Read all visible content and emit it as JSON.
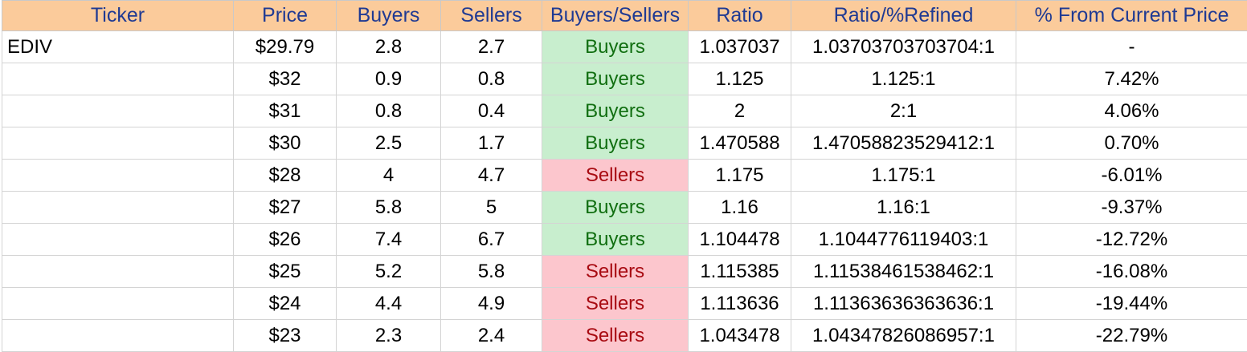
{
  "table": {
    "headers": [
      "Ticker",
      "Price",
      "Buyers",
      "Sellers",
      "Buyers/Sellers",
      "Ratio",
      "Ratio/%Refined",
      "% From Current Price"
    ],
    "rows": [
      {
        "ticker": "EDIV",
        "price": "$29.79",
        "buyers": "2.8",
        "sellers": "2.7",
        "signal": "Buyers",
        "ratio": "1.037037",
        "refined": "1.03703703703704:1",
        "pct": "-"
      },
      {
        "ticker": "",
        "price": "$32",
        "buyers": "0.9",
        "sellers": "0.8",
        "signal": "Buyers",
        "ratio": "1.125",
        "refined": "1.125:1",
        "pct": "7.42%"
      },
      {
        "ticker": "",
        "price": "$31",
        "buyers": "0.8",
        "sellers": "0.4",
        "signal": "Buyers",
        "ratio": "2",
        "refined": "2:1",
        "pct": "4.06%"
      },
      {
        "ticker": "",
        "price": "$30",
        "buyers": "2.5",
        "sellers": "1.7",
        "signal": "Buyers",
        "ratio": "1.470588",
        "refined": "1.47058823529412:1",
        "pct": "0.70%"
      },
      {
        "ticker": "",
        "price": "$28",
        "buyers": "4",
        "sellers": "4.7",
        "signal": "Sellers",
        "ratio": "1.175",
        "refined": "1.175:1",
        "pct": "-6.01%"
      },
      {
        "ticker": "",
        "price": "$27",
        "buyers": "5.8",
        "sellers": "5",
        "signal": "Buyers",
        "ratio": "1.16",
        "refined": "1.16:1",
        "pct": "-9.37%"
      },
      {
        "ticker": "",
        "price": "$26",
        "buyers": "7.4",
        "sellers": "6.7",
        "signal": "Buyers",
        "ratio": "1.104478",
        "refined": "1.1044776119403:1",
        "pct": "-12.72%"
      },
      {
        "ticker": "",
        "price": "$25",
        "buyers": "5.2",
        "sellers": "5.8",
        "signal": "Sellers",
        "ratio": "1.115385",
        "refined": "1.11538461538462:1",
        "pct": "-16.08%"
      },
      {
        "ticker": "",
        "price": "$24",
        "buyers": "4.4",
        "sellers": "4.9",
        "signal": "Sellers",
        "ratio": "1.113636",
        "refined": "1.11363636363636:1",
        "pct": "-19.44%"
      },
      {
        "ticker": "",
        "price": "$23",
        "buyers": "2.3",
        "sellers": "2.4",
        "signal": "Sellers",
        "ratio": "1.043478",
        "refined": "1.04347826086957:1",
        "pct": "-22.79%"
      }
    ]
  },
  "colors": {
    "header_bg": "#fbcb9b",
    "header_text": "#1f3a93",
    "buyers_bg": "#c8eece",
    "buyers_text": "#106e10",
    "sellers_bg": "#fcc6cd",
    "sellers_text": "#a80b12",
    "gridline": "#d4d4d4"
  }
}
